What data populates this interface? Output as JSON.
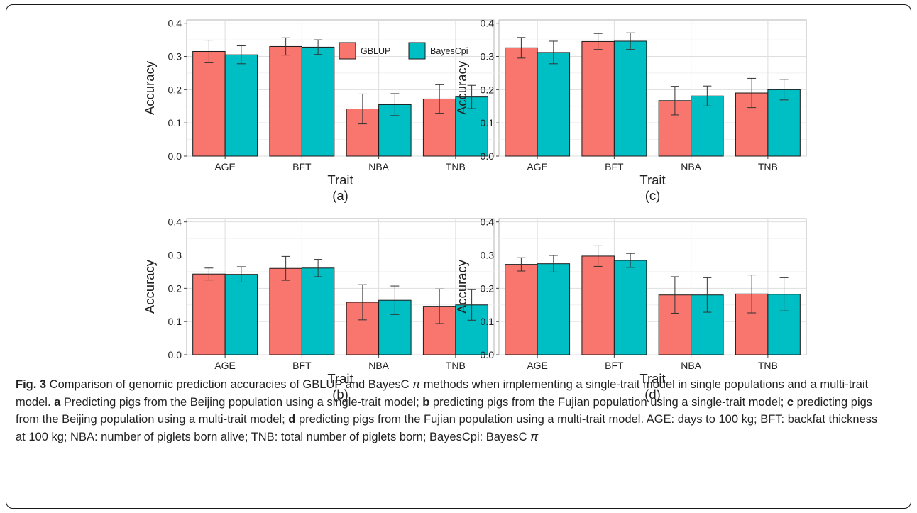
{
  "chart_data": [
    {
      "type": "bar",
      "panel_label": "(a)",
      "categories": [
        "AGE",
        "BFT",
        "NBA",
        "TNB"
      ],
      "series": [
        {
          "name": "GBLUP",
          "values": [
            0.315,
            0.33,
            0.142,
            0.172
          ],
          "errors": [
            0.034,
            0.026,
            0.045,
            0.043
          ]
        },
        {
          "name": "BayesCpi",
          "values": [
            0.305,
            0.328,
            0.155,
            0.178
          ],
          "errors": [
            0.027,
            0.022,
            0.033,
            0.035
          ]
        }
      ],
      "xlabel": "Trait",
      "ylabel": "Accuracy",
      "ylim": [
        0,
        0.41
      ],
      "yticks": [
        "0.0",
        "0.1",
        "0.2",
        "0.3",
        "0.4"
      ],
      "grid": true,
      "legend": "top-right"
    },
    {
      "type": "bar",
      "panel_label": "(c)",
      "categories": [
        "AGE",
        "BFT",
        "NBA",
        "TNB"
      ],
      "series": [
        {
          "name": "GBLUP",
          "values": [
            0.326,
            0.345,
            0.167,
            0.19
          ],
          "errors": [
            0.031,
            0.024,
            0.043,
            0.044
          ]
        },
        {
          "name": "BayesCpi",
          "values": [
            0.312,
            0.346,
            0.181,
            0.2
          ],
          "errors": [
            0.034,
            0.025,
            0.03,
            0.031
          ]
        }
      ],
      "xlabel": "Trait",
      "ylabel": "Accuracy",
      "ylim": [
        0,
        0.41
      ],
      "yticks": [
        "0.0",
        "0.1",
        "0.2",
        "0.3",
        "0.4"
      ],
      "grid": true
    },
    {
      "type": "bar",
      "panel_label": "(b)",
      "categories": [
        "AGE",
        "BFT",
        "NBA",
        "TNB"
      ],
      "series": [
        {
          "name": "GBLUP",
          "values": [
            0.243,
            0.26,
            0.158,
            0.146
          ],
          "errors": [
            0.018,
            0.036,
            0.053,
            0.052
          ]
        },
        {
          "name": "BayesCpi",
          "values": [
            0.242,
            0.261,
            0.164,
            0.15
          ],
          "errors": [
            0.023,
            0.026,
            0.043,
            0.046
          ]
        }
      ],
      "xlabel": "Trait",
      "ylabel": "Accuracy",
      "ylim": [
        0,
        0.41
      ],
      "yticks": [
        "0.0",
        "0.1",
        "0.2",
        "0.3",
        "0.4"
      ],
      "grid": true
    },
    {
      "type": "bar",
      "panel_label": "(d)",
      "categories": [
        "AGE",
        "BFT",
        "NBA",
        "TNB"
      ],
      "series": [
        {
          "name": "GBLUP",
          "values": [
            0.272,
            0.297,
            0.18,
            0.183
          ],
          "errors": [
            0.02,
            0.031,
            0.055,
            0.057
          ]
        },
        {
          "name": "BayesCpi",
          "values": [
            0.274,
            0.284,
            0.18,
            0.182
          ],
          "errors": [
            0.025,
            0.021,
            0.052,
            0.05
          ]
        }
      ],
      "xlabel": "Trait",
      "ylabel": "Accuracy",
      "ylim": [
        0,
        0.41
      ],
      "yticks": [
        "0.0",
        "0.1",
        "0.2",
        "0.3",
        "0.4"
      ],
      "grid": true
    }
  ],
  "colors": {
    "GBLUP": "#F8766D",
    "BayesCpi": "#00BFC4"
  },
  "caption": {
    "fig_label": "Fig. 3",
    "title": " Comparison of genomic prediction accuracies of GBLUP and BayesC ",
    "pi1": "π",
    "title_rest": " methods when implementing a single-trait model in single populations and a multi-trait model. ",
    "a_label": "a",
    "a_text": " Predicting pigs from the Beijing population using a single-trait model; ",
    "b_label": "b",
    "b_text": " predicting pigs from the Fujian population using a single-trait model; ",
    "c_label": "c",
    "c_text": " predicting pigs from the Beijing population using a multi-trait model; ",
    "d_label": "d",
    "d_text": " predicting pigs from the Fujian population using a multi-trait model. AGE: days to 100 kg; BFT: backfat thickness at 100 kg; NBA: number of piglets born alive; TNB: total number of piglets born; BayesCpi: BayesC ",
    "pi2": "π"
  }
}
